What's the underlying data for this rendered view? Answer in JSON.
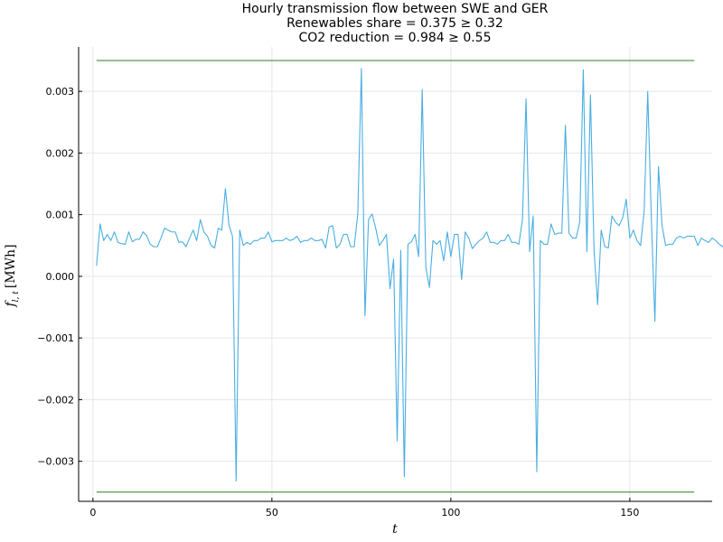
{
  "chart_data": {
    "type": "line",
    "title": [
      "Hourly transmission flow between SWE and GER",
      "Renewables share = 0.375 ≥ 0.32",
      "CO2 reduction = 0.984 ≥ 0.55"
    ],
    "xlabel": "t",
    "ylabel": "f_{l,t} [MWh]",
    "ylabel_text": "f",
    "ylabel_sub": "l, t",
    "ylabel_unit": "[MWh]",
    "xlim": [
      -4,
      173
    ],
    "ylim": [
      -0.00365,
      0.00372
    ],
    "xticks": [
      0,
      50,
      100,
      150
    ],
    "yticks": [
      -0.003,
      -0.002,
      -0.001,
      0.0,
      0.001,
      0.002,
      0.003
    ],
    "ytick_labels": [
      "−0.003",
      "−0.002",
      "−0.001",
      "0.000",
      "0.001",
      "0.002",
      "0.003"
    ],
    "grid": true,
    "legend": "none",
    "colors": {
      "flow": "#4aaee2",
      "bounds": "#2e7d22",
      "axis": "#000000"
    },
    "bounds": [
      {
        "y": 0.0035,
        "x": [
          1,
          168
        ]
      },
      {
        "y": -0.0035,
        "x": [
          1,
          168
        ]
      }
    ],
    "series": [
      {
        "x_start": 1,
        "values": [
          0.00017,
          0.00085,
          0.00058,
          0.00068,
          0.00058,
          0.00072,
          0.00055,
          0.00053,
          0.00052,
          0.00072,
          0.00056,
          0.0006,
          0.0006,
          0.00072,
          0.00066,
          0.00052,
          0.00048,
          0.00048,
          0.00062,
          0.00078,
          0.00075,
          0.00072,
          0.00072,
          0.00055,
          0.00056,
          0.00048,
          0.00062,
          0.00075,
          0.00058,
          0.00092,
          0.00072,
          0.00065,
          0.0005,
          0.00046,
          0.00078,
          0.00075,
          0.00142,
          0.00083,
          0.00065,
          -0.00332,
          0.00075,
          0.0005,
          0.00055,
          0.00052,
          0.00058,
          0.00058,
          0.00062,
          0.00062,
          0.00072,
          0.00056,
          0.00058,
          0.00058,
          0.00058,
          0.00062,
          0.00058,
          0.0006,
          0.00065,
          0.00055,
          0.00058,
          0.00058,
          0.00062,
          0.00058,
          0.00058,
          0.0006,
          0.00046,
          0.0008,
          0.00082,
          0.00046,
          0.00052,
          0.00068,
          0.00068,
          0.00048,
          0.00048,
          0.00102,
          0.00337,
          -0.00064,
          0.00092,
          0.00101,
          0.00078,
          0.0005,
          0.00058,
          0.00068,
          -0.0002,
          0.00028,
          -0.00267,
          0.00042,
          -0.00325,
          0.00052,
          0.00056,
          0.00068,
          0.00032,
          0.00303,
          0.00015,
          -0.00018,
          0.00058,
          0.00052,
          0.00058,
          0.00025,
          0.00072,
          0.00032,
          0.00068,
          0.00068,
          -5e-05,
          0.00072,
          0.00062,
          0.00045,
          0.00052,
          0.00058,
          0.00062,
          0.00072,
          0.00055,
          0.00055,
          0.00052,
          0.00058,
          0.00058,
          0.00068,
          0.00055,
          0.00055,
          0.00052,
          0.00092,
          0.00288,
          0.0004,
          0.00098,
          -0.00317,
          0.00058,
          0.00052,
          0.00052,
          0.00085,
          0.00068,
          0.0007,
          0.0007,
          0.00245,
          0.0007,
          0.00062,
          0.00062,
          0.00088,
          0.00335,
          0.0004,
          0.00294,
          0.00042,
          -0.00046,
          0.00075,
          0.00048,
          0.00046,
          0.00098,
          0.00088,
          0.00082,
          0.00095,
          0.00125,
          0.00062,
          0.00075,
          0.00058,
          0.0005,
          0.00105,
          0.003,
          0.00095,
          -0.00073,
          0.00178,
          0.00082,
          0.0005,
          0.00052,
          0.00052,
          0.00062,
          0.00065,
          0.00062,
          0.00065,
          0.00065,
          0.00065,
          0.0005,
          0.00062,
          0.00058,
          0.00055,
          0.00062,
          0.00058,
          0.00052,
          0.00048,
          0.00065
        ]
      }
    ]
  }
}
